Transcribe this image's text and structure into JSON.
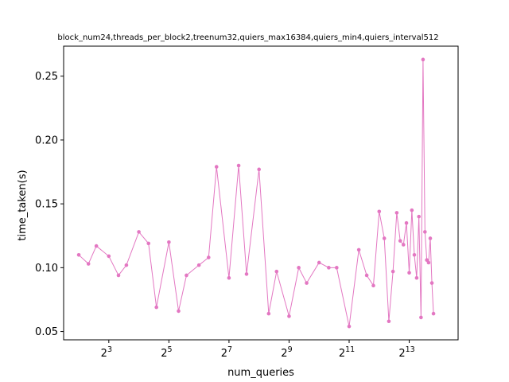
{
  "chart_data": {
    "type": "line",
    "title": "block_num24,threads_per_block2,treenum32,quiers_max16384,quiers_min4,quiers_interval512",
    "xlabel": "num_queries",
    "ylabel": "time_taken(s)",
    "xscale": "log2",
    "xlim": [
      2.82,
      25300
    ],
    "ylim": [
      0.0435,
      0.2735
    ],
    "x_ticks": [
      {
        "value": 8,
        "base": "2",
        "exp": "3"
      },
      {
        "value": 32,
        "base": "2",
        "exp": "5"
      },
      {
        "value": 128,
        "base": "2",
        "exp": "7"
      },
      {
        "value": 512,
        "base": "2",
        "exp": "9"
      },
      {
        "value": 2048,
        "base": "2",
        "exp": "11"
      },
      {
        "value": 8192,
        "base": "2",
        "exp": "13"
      }
    ],
    "y_ticks": [
      "0.05",
      "0.10",
      "0.15",
      "0.20",
      "0.25"
    ],
    "y_tick_values": [
      0.05,
      0.1,
      0.15,
      0.2,
      0.25
    ],
    "grid": false,
    "color": "#e377c2",
    "series": [
      {
        "name": "",
        "x": [
          4,
          5,
          6,
          8,
          10,
          12,
          16,
          20,
          24,
          32,
          40,
          48,
          64,
          80,
          96,
          128,
          160,
          192,
          256,
          320,
          384,
          512,
          640,
          768,
          1024,
          1280,
          1536,
          2048,
          2560,
          3072,
          3584,
          4096,
          4608,
          5120,
          5632,
          6144,
          6656,
          7168,
          7680,
          8192,
          8704,
          9216,
          9728,
          10240,
          10752,
          11264,
          11776,
          12288,
          12800,
          13312,
          13824,
          14336
        ],
        "y": [
          0.11,
          0.103,
          0.117,
          0.109,
          0.094,
          0.102,
          0.128,
          0.119,
          0.069,
          0.12,
          0.066,
          0.094,
          0.102,
          0.108,
          0.179,
          0.092,
          0.18,
          0.095,
          0.177,
          0.064,
          0.097,
          0.062,
          0.1,
          0.088,
          0.104,
          0.1,
          0.1,
          0.054,
          0.114,
          0.094,
          0.086,
          0.144,
          0.123,
          0.058,
          0.097,
          0.143,
          0.121,
          0.118,
          0.135,
          0.096,
          0.145,
          0.11,
          0.092,
          0.14,
          0.061,
          0.263,
          0.128,
          0.106,
          0.104,
          0.123,
          0.088,
          0.064
        ]
      }
    ]
  }
}
